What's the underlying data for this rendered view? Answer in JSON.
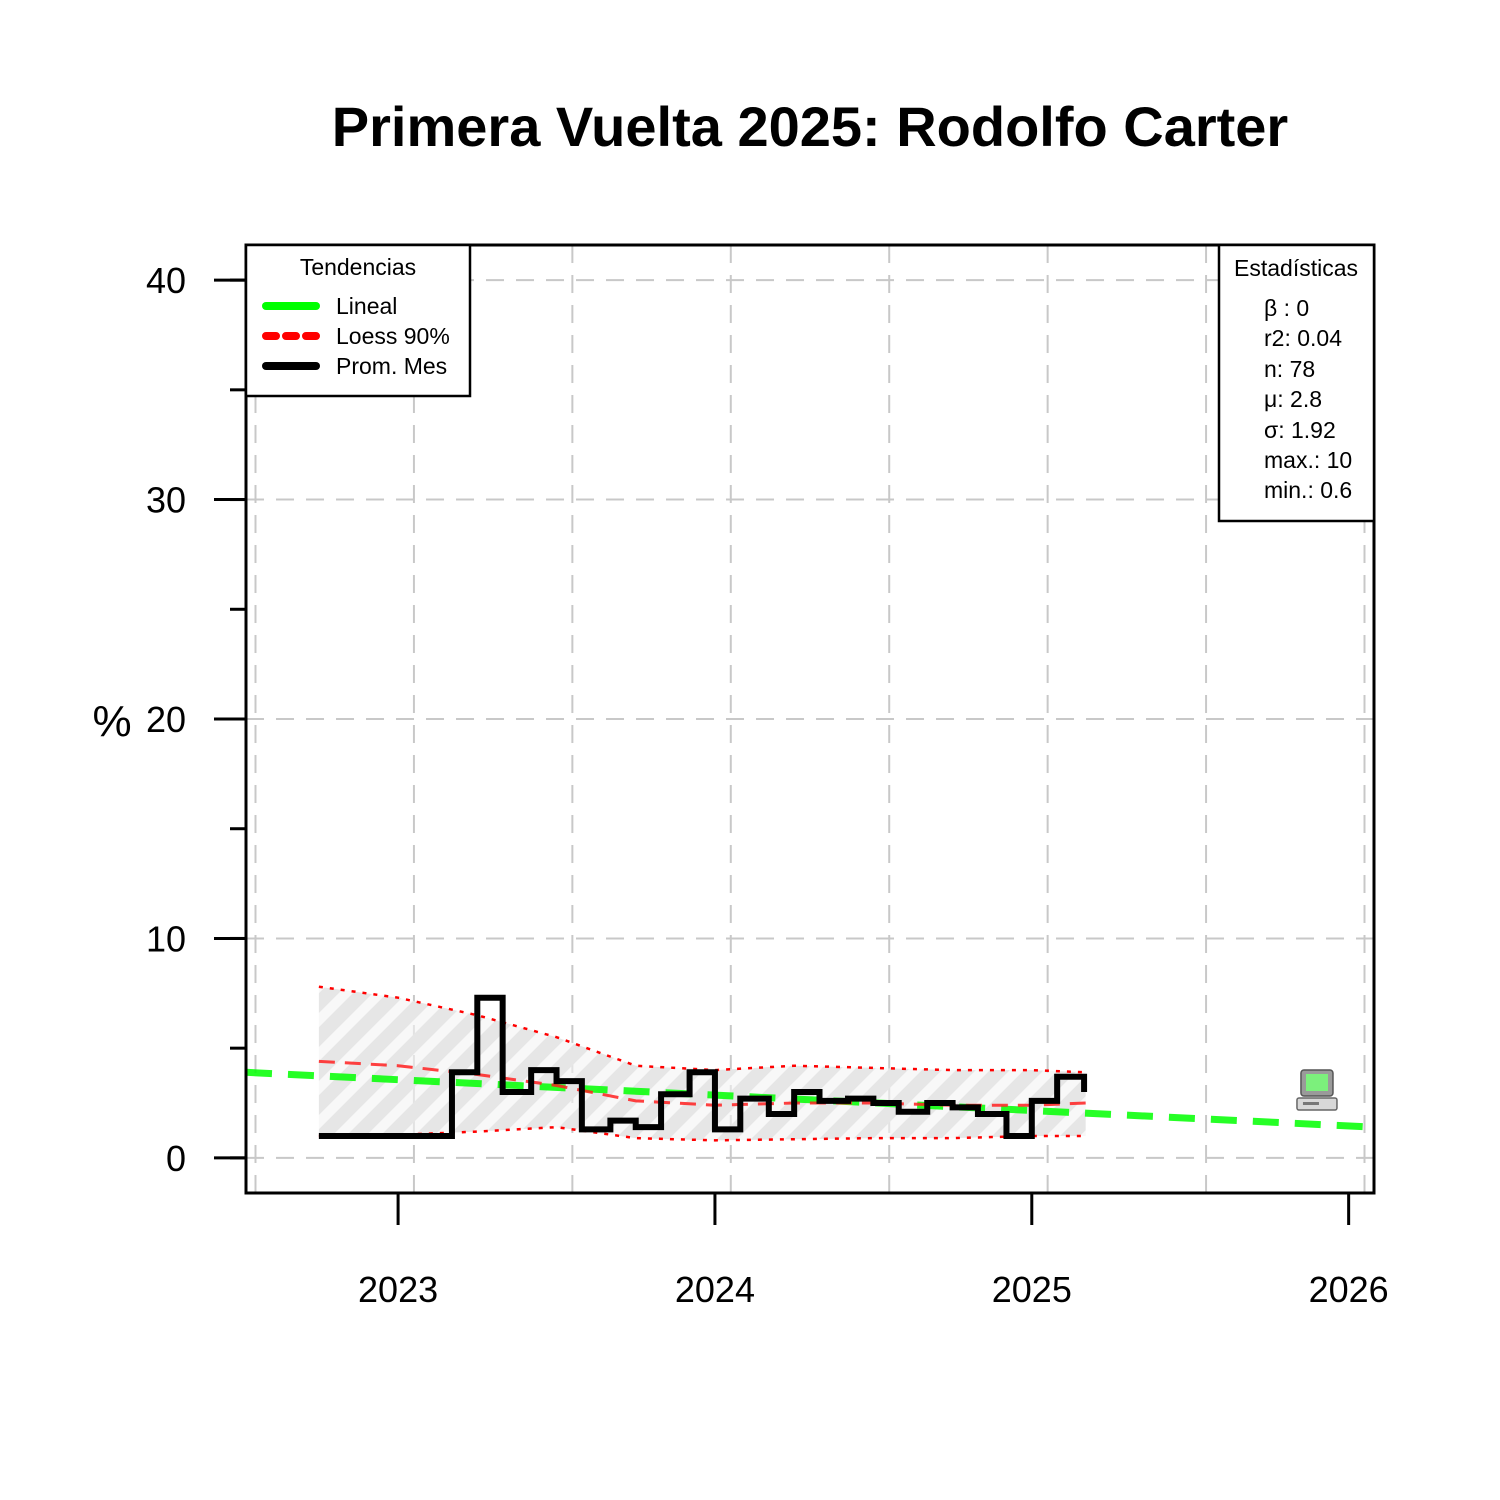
{
  "chart_data": {
    "type": "line",
    "title": "Primera Vuelta 2025: Rodolfo Carter",
    "ylabel": "%",
    "xlabel": "",
    "x_ticks": [
      "2023",
      "2024",
      "2025",
      "2026"
    ],
    "y_ticks": [
      "0",
      "10",
      "20",
      "30",
      "40"
    ],
    "xlim": [
      2022.52,
      2026.08
    ],
    "ylim": [
      -1.6,
      41.6
    ],
    "grid": true,
    "legend": {
      "title": "Tendencias",
      "placement": "top-left",
      "items": [
        {
          "label": "Lineal",
          "color": "#00ff00",
          "style": "solid"
        },
        {
          "label": "Loess 90%",
          "color": "#ff0000",
          "style": "dotted"
        },
        {
          "label": "Prom. Mes",
          "color": "#000000",
          "style": "solid"
        }
      ]
    },
    "stats_box": {
      "title": "Estadísticas",
      "placement": "top-right",
      "lines": [
        "β : 0",
        "r2: 0.04",
        "n: 78",
        "μ: 2.8",
        "σ: 1.92",
        "max.: 10",
        "min.: 0.6"
      ]
    },
    "series": [
      {
        "name": "Prom. Mes",
        "type": "step",
        "color": "#000000",
        "x": [
          2022.75,
          2023.17,
          2023.25,
          2023.33,
          2023.42,
          2023.5,
          2023.58,
          2023.67,
          2023.75,
          2023.83,
          2023.92,
          2024.0,
          2024.08,
          2024.17,
          2024.25,
          2024.33,
          2024.42,
          2024.5,
          2024.58,
          2024.67,
          2024.75,
          2024.83,
          2024.92,
          2025.0,
          2025.08
        ],
        "values": [
          1.0,
          3.9,
          7.3,
          3.0,
          4.0,
          3.5,
          1.3,
          1.7,
          1.4,
          2.9,
          3.9,
          1.3,
          2.7,
          2.0,
          3.0,
          2.6,
          2.7,
          2.5,
          2.1,
          2.5,
          2.3,
          2.0,
          1.0,
          2.6,
          3.7
        ],
        "x_end": 2025.165,
        "end_value": 3.0
      },
      {
        "name": "Lineal",
        "type": "line",
        "color": "#00ff00",
        "x": [
          2022.52,
          2026.08
        ],
        "values": [
          3.9,
          1.4
        ]
      },
      {
        "name": "Loess 90%",
        "type": "line",
        "color": "#ff0000",
        "x": [
          2022.75,
          2023.0,
          2023.25,
          2023.5,
          2023.75,
          2024.0,
          2024.25,
          2024.5,
          2024.75,
          2025.0,
          2025.17
        ],
        "values": [
          4.4,
          4.2,
          3.8,
          3.3,
          2.6,
          2.4,
          2.5,
          2.5,
          2.4,
          2.4,
          2.5
        ],
        "lower": [
          1.0,
          1.05,
          1.2,
          1.4,
          0.9,
          0.8,
          0.85,
          0.9,
          0.9,
          1.0,
          1.0
        ],
        "upper": [
          7.8,
          7.3,
          6.5,
          5.5,
          4.2,
          4.0,
          4.2,
          4.1,
          4.0,
          4.0,
          3.9
        ]
      }
    ],
    "annotation_icon": "computer-icon",
    "annotation_x": 2025.9,
    "annotation_y": 2.0
  }
}
